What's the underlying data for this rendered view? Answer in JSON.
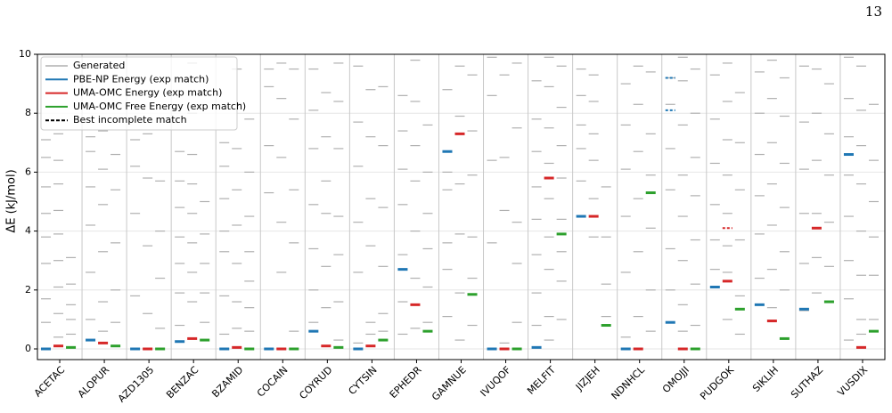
{
  "page_number": "13",
  "chart_data": {
    "type": "levels",
    "ylabel": "ΔE (kJ/mol)",
    "ylim": [
      0,
      10
    ],
    "yticks": [
      0,
      2,
      4,
      6,
      8,
      10
    ],
    "grid": true,
    "legend": "upper left",
    "categories": [
      "ACETAC",
      "ALOPUR",
      "AZD1305",
      "BENZAC",
      "BZAMID",
      "COCAIN",
      "COYRUD",
      "CYTSIN",
      "EPHEDR",
      "GAMNUE",
      "IVUQOF",
      "MELFIT",
      "JIZJEH",
      "NDNHCL",
      "OMOJJI",
      "PUDGOK",
      "SIKLIH",
      "SUTHAZ",
      "VUSDIX"
    ],
    "series": [
      {
        "name": "Generated",
        "color": "#b0b0b0",
        "values": [
          [
            [
              0.9,
              1.7,
              2.9,
              3.8,
              4.6,
              5.5,
              6.5,
              7.1
            ],
            [
              0.4,
              1.2,
              2.1,
              3.0,
              3.9,
              4.7,
              5.6,
              6.4,
              7.3
            ],
            [
              0.5,
              1.0,
              1.5,
              2.2,
              3.1
            ]
          ],
          [
            [
              1.0,
              2.6,
              4.2,
              5.5,
              6.7,
              7.2
            ],
            [
              0.6,
              1.6,
              3.3,
              4.9,
              6.1,
              7.4
            ],
            [
              0.9,
              2.0,
              3.6,
              5.4,
              6.6
            ]
          ],
          [
            [
              1.8,
              4.6,
              6.2,
              7.1
            ],
            [
              1.2,
              3.5,
              5.8,
              7.3
            ],
            [
              0.7,
              2.4,
              4.0,
              5.7
            ]
          ],
          [
            [
              0.8,
              1.9,
              2.9,
              3.8,
              4.8,
              5.7,
              6.7
            ],
            [
              1.6,
              2.6,
              3.6,
              4.6,
              5.6,
              6.6,
              8.0,
              9.7
            ],
            [
              0.9,
              1.9,
              2.9,
              3.9,
              5.0
            ]
          ],
          [
            [
              0.5,
              1.8,
              3.3,
              4.0,
              5.1,
              6.2,
              7.0
            ],
            [
              0.7,
              1.6,
              2.9,
              4.2,
              5.4,
              6.8,
              8.3,
              9.5
            ],
            [
              0.6,
              1.4,
              2.3,
              3.3,
              4.5,
              6.0,
              7.8
            ]
          ],
          [
            [
              5.3,
              6.9,
              8.9,
              9.5
            ],
            [
              2.6,
              4.3,
              6.5,
              8.5,
              9.7
            ],
            [
              0.6,
              3.6,
              5.4,
              7.8,
              9.5
            ]
          ],
          [
            [
              0.9,
              2.0,
              3.4,
              4.9,
              6.8,
              8.1,
              9.5
            ],
            [
              1.4,
              2.8,
              4.6,
              5.7,
              7.2,
              8.7
            ],
            [
              0.3,
              1.6,
              3.2,
              4.5,
              6.8,
              8.4,
              9.7
            ]
          ],
          [
            [
              0.2,
              2.6,
              4.3,
              6.2,
              7.7,
              9.6
            ],
            [
              0.5,
              0.9,
              3.5,
              5.1,
              7.2,
              8.8
            ],
            [
              0.6,
              1.2,
              2.8,
              4.8,
              6.9,
              8.9
            ]
          ],
          [
            [
              0.5,
              1.6,
              3.2,
              4.9,
              6.1,
              7.4,
              8.6
            ],
            [
              0.7,
              2.4,
              4.0,
              5.7,
              6.9,
              8.4,
              9.8
            ],
            [
              0.9,
              2.1,
              3.4,
              4.6,
              6.0,
              7.6
            ]
          ],
          [
            [
              1.1,
              2.7,
              3.6,
              5.4,
              6.0,
              8.8
            ],
            [
              0.3,
              1.9,
              3.9,
              5.6,
              7.9,
              9.6
            ],
            [
              0.8,
              2.4,
              3.8,
              5.9,
              7.4,
              9.3
            ]
          ],
          [
            [
              3.6,
              6.4,
              8.6,
              9.9
            ],
            [
              0.2,
              4.7,
              6.5,
              9.3
            ],
            [
              0.9,
              2.9,
              4.3,
              7.5,
              9.7
            ]
          ],
          [
            [
              0.8,
              1.9,
              3.2,
              4.4,
              5.5,
              6.7,
              7.8,
              9.1
            ],
            [
              0.3,
              1.1,
              2.7,
              3.8,
              5.1,
              6.3,
              7.5,
              8.9,
              9.9
            ],
            [
              1.0,
              2.3,
              3.3,
              4.4,
              5.8,
              6.9,
              8.2,
              9.6
            ]
          ],
          [
            [
              5.7,
              6.8,
              7.6,
              8.6,
              9.5
            ],
            [
              3.8,
              5.1,
              6.4,
              7.3,
              8.4,
              9.3
            ],
            [
              1.1,
              2.2,
              3.8,
              5.5
            ]
          ],
          [
            [
              0.4,
              2.6,
              4.5,
              6.1,
              7.6,
              9.0
            ],
            [
              1.1,
              3.3,
              5.1,
              6.7,
              8.3,
              9.6
            ],
            [
              0.6,
              2.0,
              4.1,
              5.9,
              7.3,
              9.4
            ]
          ],
          [
            [
              2.0,
              3.4,
              5.4,
              6.8,
              8.3,
              9.2
            ],
            [
              0.6,
              1.5,
              3.0,
              4.5,
              5.9,
              7.6,
              9.1,
              9.9
            ],
            [
              0.8,
              2.2,
              3.7,
              5.2,
              6.5,
              8.0,
              9.5
            ]
          ],
          [
            [
              2.7,
              3.7,
              4.9,
              6.3,
              7.8,
              9.3
            ],
            [
              1.0,
              2.6,
              3.5,
              4.6,
              5.9,
              7.1,
              8.4,
              9.7
            ],
            [
              0.5,
              1.8,
              3.7,
              5.4,
              7.0,
              8.7
            ]
          ],
          [
            [
              2.4,
              3.9,
              5.2,
              6.6,
              8.0,
              9.4
            ],
            [
              1.4,
              2.7,
              4.2,
              5.6,
              7.0,
              8.5,
              9.8
            ],
            [
              2.0,
              3.3,
              4.8,
              6.3,
              7.9,
              9.2
            ]
          ],
          [
            [
              1.3,
              2.9,
              4.6,
              6.1,
              7.7,
              9.6
            ],
            [
              1.9,
              3.1,
              4.6,
              6.4,
              8.0,
              9.5
            ],
            [
              1.6,
              2.8,
              4.3,
              5.9,
              7.3,
              9.0
            ]
          ],
          [
            [
              0.3,
              1.7,
              3.0,
              4.5,
              5.9,
              7.2,
              8.5,
              9.9
            ],
            [
              0.5,
              1.0,
              2.5,
              4.0,
              5.6,
              6.9,
              8.1,
              9.6
            ],
            [
              1.0,
              2.5,
              3.8,
              5.0,
              6.4,
              8.3
            ]
          ]
        ]
      },
      {
        "name": "PBE-NP Energy (exp match)",
        "color": "#1f77b4",
        "values": [
          0,
          0.3,
          0,
          0.25,
          0,
          0,
          0.6,
          0,
          2.7,
          6.7,
          0,
          0.05,
          4.5,
          0,
          0.9,
          2.1,
          1.5,
          1.35,
          6.6
        ]
      },
      {
        "name": "UMA-OMC Energy (exp match)",
        "color": "#d62728",
        "values": [
          0.1,
          0.2,
          0,
          0.35,
          0.05,
          0,
          0.1,
          0.1,
          1.5,
          7.3,
          0,
          5.8,
          4.5,
          0,
          0,
          2.3,
          0.95,
          4.1,
          0.05
        ]
      },
      {
        "name": "UMA-OMC Free Energy (exp match)",
        "color": "#2ca02c",
        "values": [
          0.05,
          0.1,
          0,
          0.3,
          0,
          0,
          0.05,
          0.3,
          0.6,
          1.85,
          0,
          3.9,
          0.8,
          5.3,
          0,
          1.35,
          0.35,
          1.6,
          0.6
        ]
      },
      {
        "name": "Best incomplete match",
        "color": "#000000",
        "values": [
          [
            [],
            [],
            []
          ],
          [
            [],
            [],
            []
          ],
          [
            [],
            [],
            []
          ],
          [
            [],
            [],
            []
          ],
          [
            [],
            [],
            []
          ],
          [
            [],
            [],
            []
          ],
          [
            [],
            [],
            []
          ],
          [
            [],
            [],
            []
          ],
          [
            [],
            [],
            []
          ],
          [
            [],
            [],
            []
          ],
          [
            [],
            [],
            []
          ],
          [
            [],
            [],
            []
          ],
          [
            [],
            [],
            []
          ],
          [
            [],
            [],
            []
          ],
          [
            [
              8.1,
              9.2
            ],
            [],
            []
          ],
          [
            [],
            [
              4.1
            ],
            []
          ],
          [
            [],
            [],
            []
          ],
          [
            [],
            [],
            []
          ],
          [
            [],
            [],
            []
          ]
        ]
      }
    ]
  }
}
